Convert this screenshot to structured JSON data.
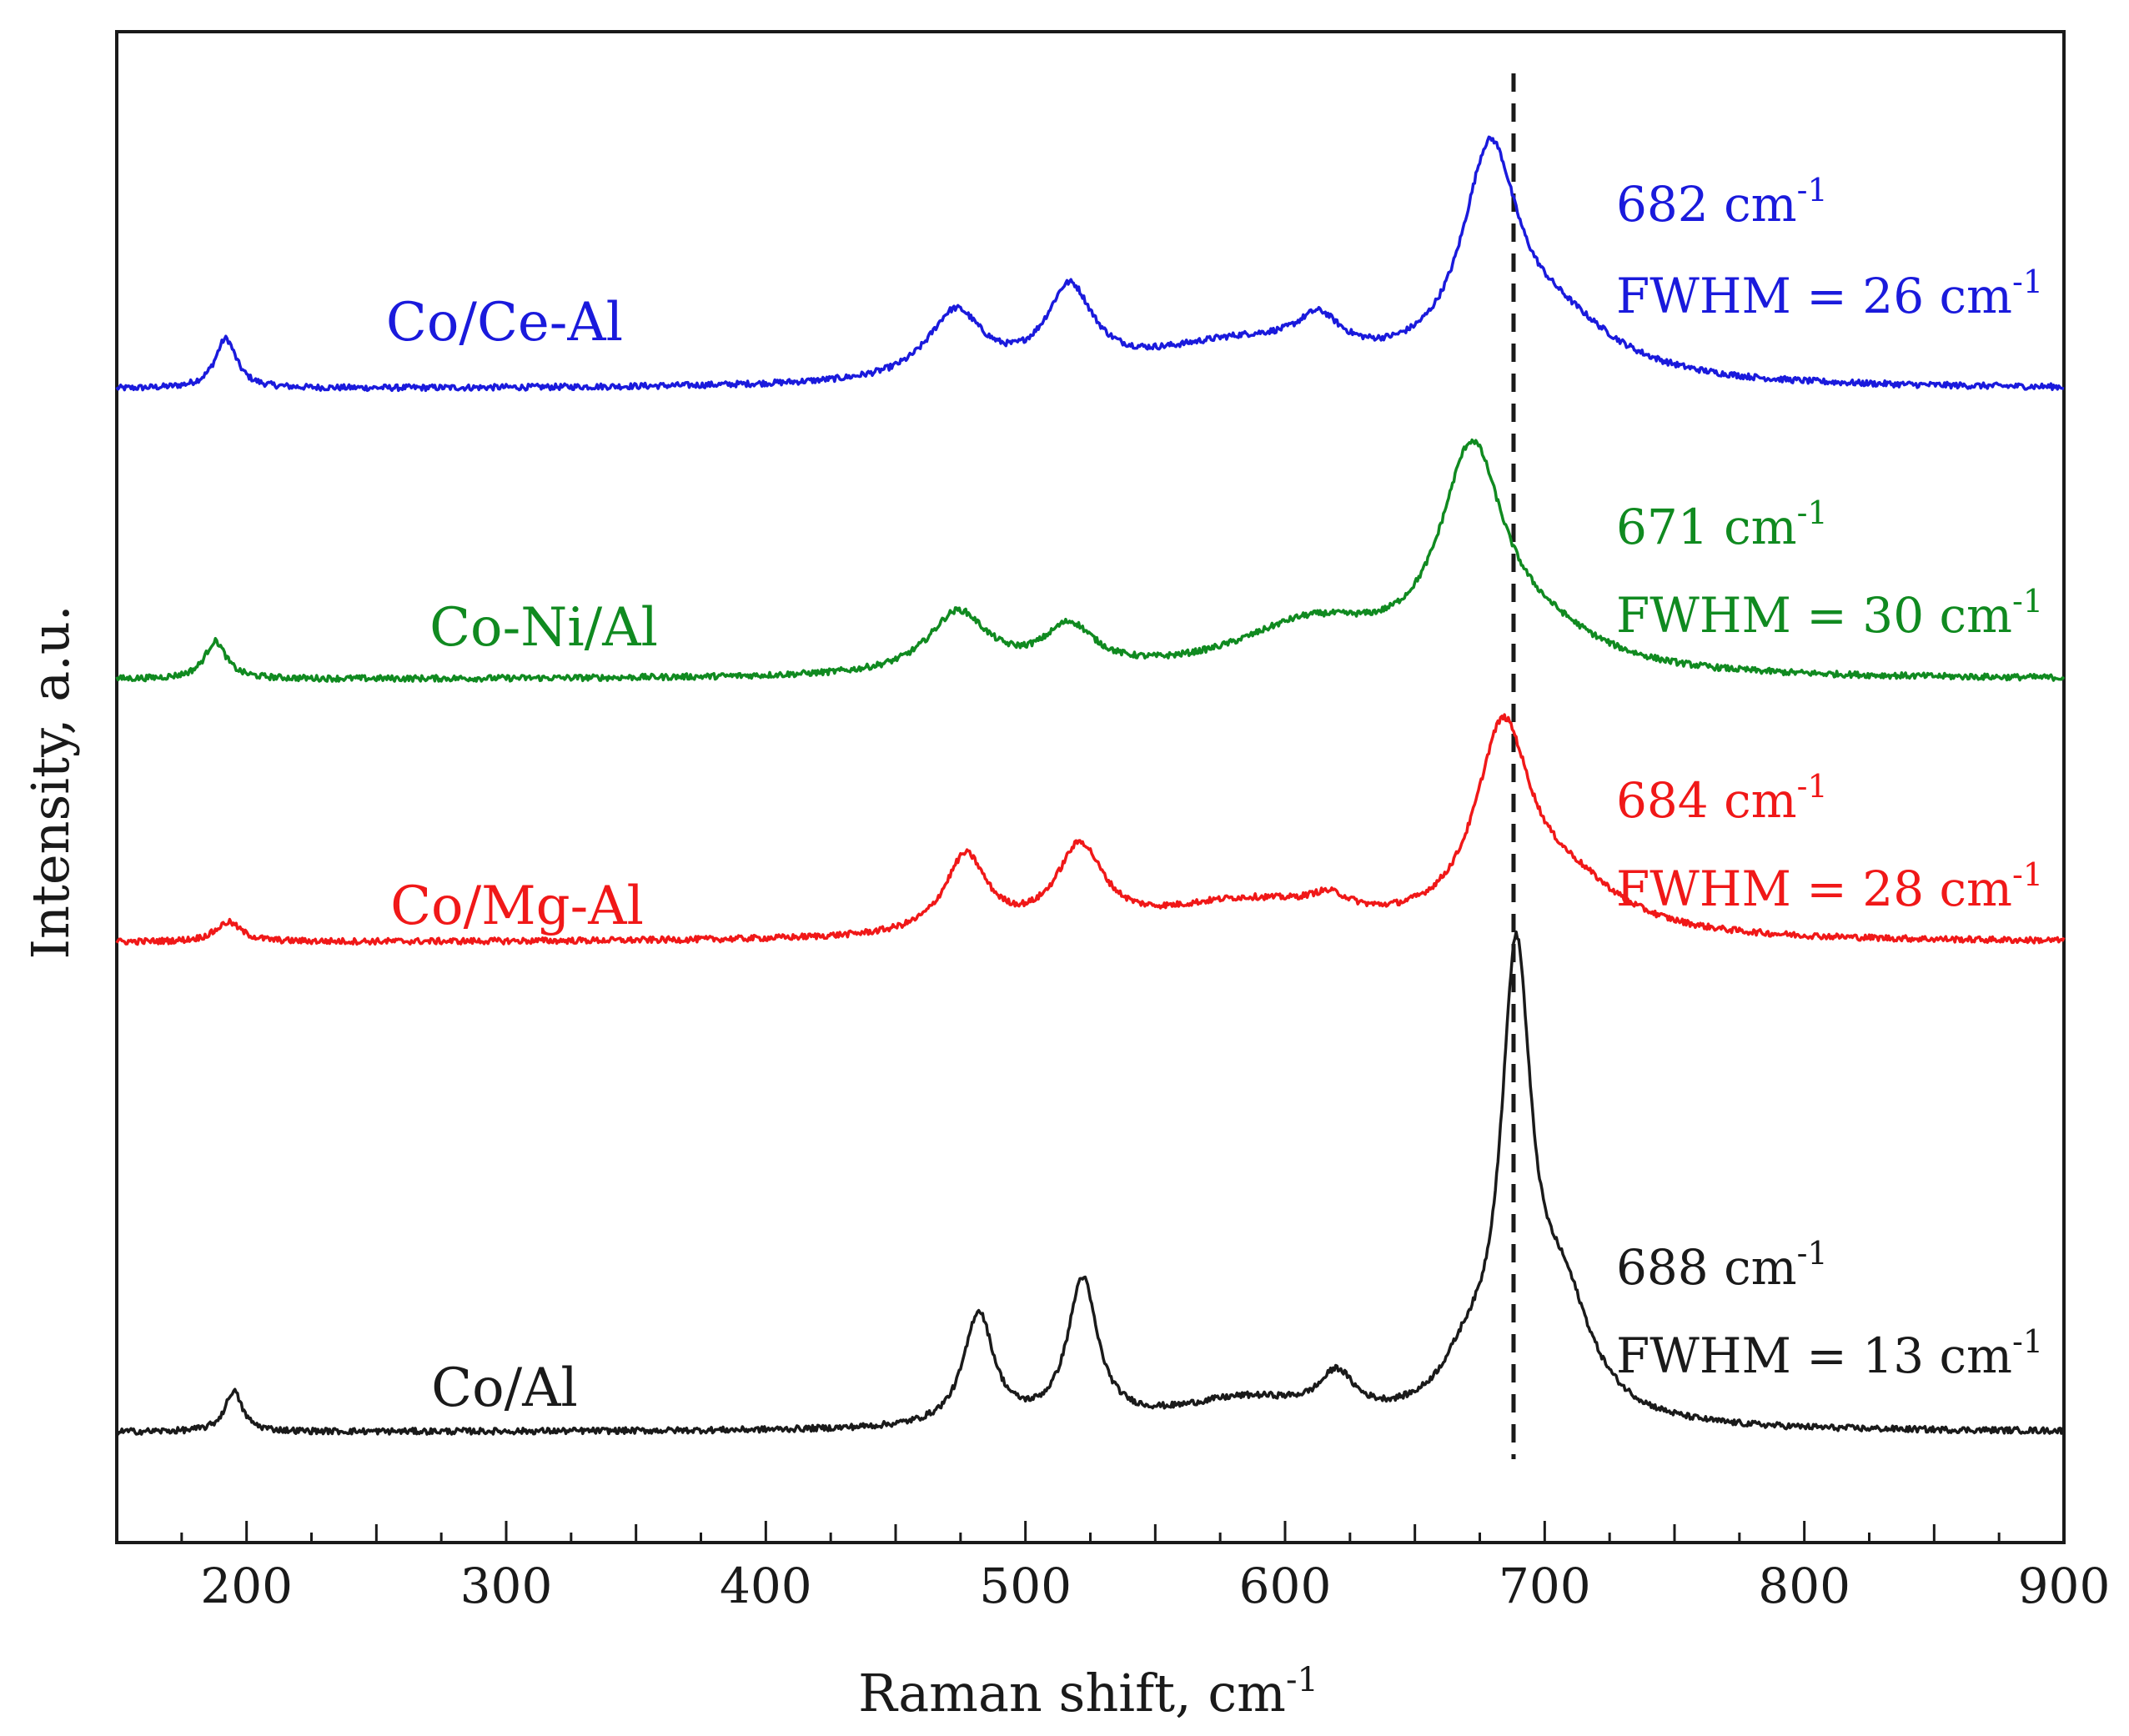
{
  "chart_data": {
    "type": "line",
    "title": "",
    "xlabel": "Raman shift, cm",
    "xlabel_sup": "-1",
    "ylabel": "Intensity, a.u.",
    "xlim": [
      150,
      900
    ],
    "ylim": [
      0,
      1
    ],
    "xticks": [
      200,
      300,
      400,
      500,
      600,
      700,
      800,
      900
    ],
    "x_minor_step": 25,
    "grid": false,
    "reference_line": {
      "x": 688,
      "style": "dashed",
      "color": "#1a1a1a"
    },
    "series": [
      {
        "name": "Co/Ce-Al",
        "color": "#1a1adc",
        "baseline": 0.763,
        "peaks": [
          {
            "x": 192,
            "h": 0.033,
            "w": 5
          },
          {
            "x": 473,
            "h": 0.045,
            "w": 13
          },
          {
            "x": 517,
            "h": 0.056,
            "w": 11
          },
          {
            "x": 585,
            "h": 0.028,
            "w": 50
          },
          {
            "x": 613,
            "h": 0.022,
            "w": 10
          },
          {
            "x": 679,
            "h": 0.14,
            "w": 13
          },
          {
            "x": 705,
            "h": 0.035,
            "w": 28
          }
        ],
        "annotation": {
          "position_label": "682 cm",
          "sup": "-1",
          "fwhm_label": "FWHM = 26 cm"
        }
      },
      {
        "name": "Co-Ni/Al",
        "color": "#108a20",
        "baseline": 0.571,
        "peaks": [
          {
            "x": 188,
            "h": 0.025,
            "w": 5
          },
          {
            "x": 474,
            "h": 0.041,
            "w": 14
          },
          {
            "x": 517,
            "h": 0.029,
            "w": 12
          },
          {
            "x": 610,
            "h": 0.033,
            "w": 35
          },
          {
            "x": 672,
            "h": 0.14,
            "w": 15
          },
          {
            "x": 700,
            "h": 0.02,
            "w": 28
          }
        ],
        "annotation": {
          "position_label": "671 cm",
          "sup": "-1",
          "fwhm_label": "FWHM = 30 cm"
        }
      },
      {
        "name": "Co/Mg-Al",
        "color": "#f01818",
        "baseline": 0.397,
        "peaks": [
          {
            "x": 193,
            "h": 0.013,
            "w": 6
          },
          {
            "x": 477,
            "h": 0.052,
            "w": 10
          },
          {
            "x": 521,
            "h": 0.055,
            "w": 11
          },
          {
            "x": 585,
            "h": 0.024,
            "w": 45
          },
          {
            "x": 617,
            "h": 0.011,
            "w": 10
          },
          {
            "x": 684,
            "h": 0.13,
            "w": 13
          },
          {
            "x": 710,
            "h": 0.03,
            "w": 25
          }
        ],
        "annotation": {
          "position_label": "684 cm",
          "sup": "-1",
          "fwhm_label": "FWHM = 28 cm"
        }
      },
      {
        "name": "Co/Al",
        "color": "#1a1a1a",
        "baseline": 0.073,
        "peaks": [
          {
            "x": 195,
            "h": 0.027,
            "w": 4
          },
          {
            "x": 482,
            "h": 0.075,
            "w": 7
          },
          {
            "x": 522,
            "h": 0.095,
            "w": 7
          },
          {
            "x": 585,
            "h": 0.019,
            "w": 35
          },
          {
            "x": 620,
            "h": 0.026,
            "w": 8
          },
          {
            "x": 689,
            "h": 0.29,
            "w": 7
          },
          {
            "x": 707,
            "h": 0.075,
            "w": 14
          },
          {
            "x": 670,
            "h": 0.03,
            "w": 12
          }
        ],
        "annotation": {
          "position_label": "688 cm",
          "sup": "-1",
          "fwhm_label": "FWHM = 13 cm"
        }
      }
    ]
  }
}
